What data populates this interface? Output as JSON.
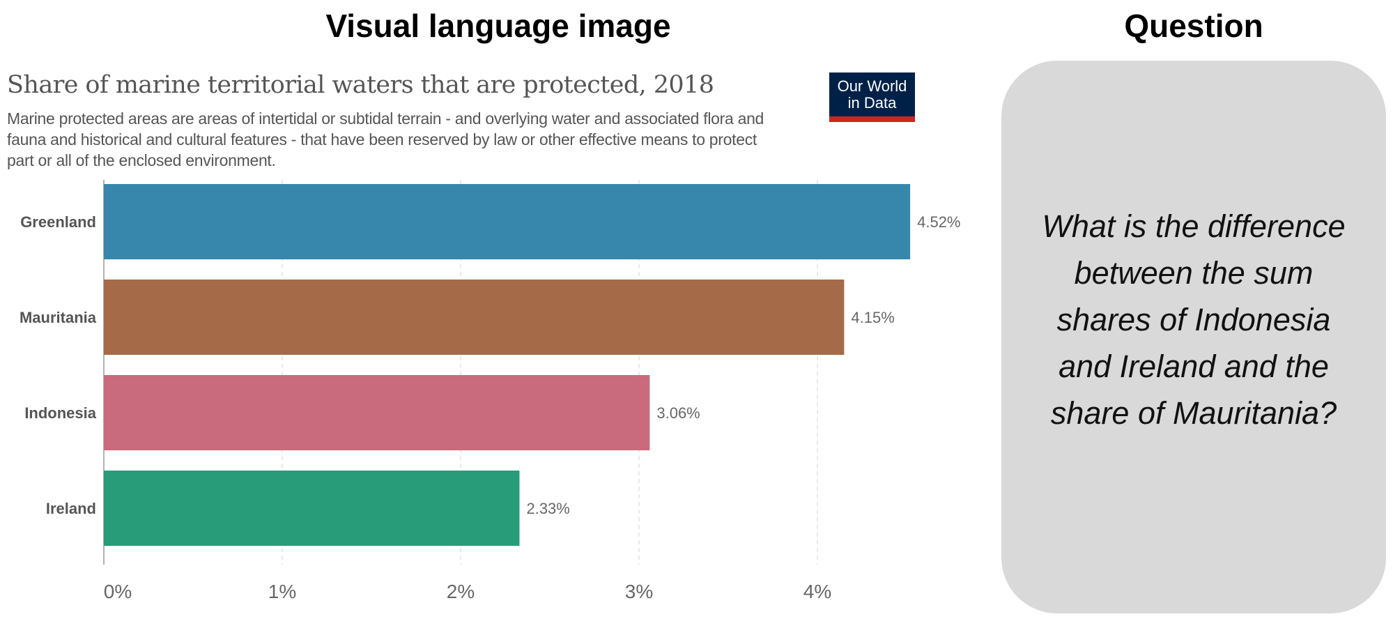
{
  "headings": {
    "left": "Visual language image",
    "right": "Question"
  },
  "question": "What is the difference between the sum shares of Indonesia and Ireland and the share of Mauritania?",
  "logo": {
    "text_line1": "Our World",
    "text_line2": "in Data",
    "bg": "#002147",
    "accent": "#ce261e"
  },
  "chart_data": {
    "type": "bar",
    "orientation": "horizontal",
    "title": "Share of marine territorial waters that are protected, 2018",
    "subtitle": "Marine protected areas are areas of intertidal or subtidal terrain - and overlying water and associated flora and fauna and historical and cultural features - that have been reserved by law or other effective means to protect part or all of the enclosed environment.",
    "categories": [
      "Greenland",
      "Mauritania",
      "Indonesia",
      "Ireland"
    ],
    "values": [
      4.52,
      4.15,
      3.06,
      2.33
    ],
    "value_labels": [
      "4.52%",
      "4.15%",
      "3.06%",
      "2.33%"
    ],
    "colors": [
      "#3787ad",
      "#a56b48",
      "#c96b7c",
      "#289c79"
    ],
    "xlim": [
      0,
      4.52
    ],
    "xticks": [
      0,
      1,
      2,
      3,
      4
    ],
    "xtick_labels": [
      "0%",
      "1%",
      "2%",
      "3%",
      "4%"
    ],
    "grid": "vertical dashed"
  }
}
